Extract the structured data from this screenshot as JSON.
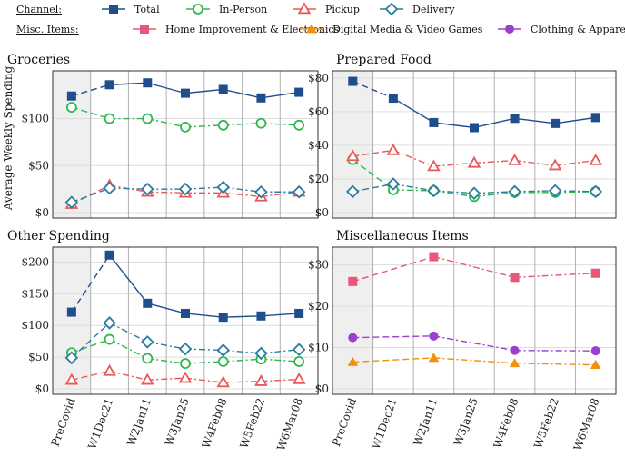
{
  "legend": {
    "channel_heading": "Channel:",
    "misc_heading": "Misc. Items:",
    "channel_items": [
      {
        "label": "Total",
        "color": "#1f4e8c",
        "shape": "square",
        "dash": "solid"
      },
      {
        "label": "In-Person",
        "color": "#2db84d",
        "shape": "circle",
        "dash": "dashdot"
      },
      {
        "label": "Pickup",
        "color": "#e85a5a",
        "shape": "triangle",
        "dash": "dashdot"
      },
      {
        "label": "Delivery",
        "color": "#2a7d9e",
        "shape": "diamond",
        "dash": "dashdot"
      }
    ],
    "misc_items": [
      {
        "label": "Home Improvement & Electronics",
        "color": "#e8577a",
        "shape": "square",
        "dash": "dashdot"
      },
      {
        "label": "Digital Media & Video Games",
        "color": "#f0900c",
        "shape": "triangle-filled",
        "dash": "dashdot"
      },
      {
        "label": "Clothing & Apparel",
        "color": "#9b3fd1",
        "shape": "circle-filled",
        "dash": "dashdot"
      }
    ]
  },
  "ylabel": "Average Weekly Spending",
  "chart_data": [
    {
      "type": "line",
      "title": "Groceries",
      "categories": [
        "PreCovid",
        "W1Dec21",
        "W2Jan11",
        "W3Jan25",
        "W4Feb08",
        "W5Feb22",
        "W6Mar08"
      ],
      "ylim": [
        0,
        145
      ],
      "yticks": [
        0,
        50,
        100
      ],
      "ytick_labels": [
        "$0",
        "$50",
        "$100"
      ],
      "series": [
        {
          "name": "Total",
          "values": [
            124,
            136,
            138,
            127,
            131,
            122,
            128
          ]
        },
        {
          "name": "In-Person",
          "values": [
            112,
            100,
            100,
            91,
            93,
            95,
            93
          ]
        },
        {
          "name": "Pickup",
          "values": [
            9,
            29,
            22,
            21,
            21,
            17,
            22
          ]
        },
        {
          "name": "Delivery",
          "values": [
            11,
            26,
            25,
            25,
            27,
            22,
            22
          ]
        }
      ]
    },
    {
      "type": "line",
      "title": "Prepared Food",
      "categories": [
        "PreCovid",
        "W1Dec21",
        "W2Jan11",
        "W3Jan25",
        "W4Feb08",
        "W5Feb22",
        "W6Mar08"
      ],
      "ylim": [
        0,
        81
      ],
      "yticks": [
        0,
        20,
        40,
        60,
        80
      ],
      "ytick_labels": [
        "$0",
        "$20",
        "$40",
        "$60",
        "$80"
      ],
      "series": [
        {
          "name": "Total",
          "values": [
            78,
            68,
            53.5,
            50.5,
            56,
            53,
            56.5
          ]
        },
        {
          "name": "In-Person",
          "values": [
            31.5,
            13.5,
            13,
            9.5,
            12,
            12,
            12.5
          ]
        },
        {
          "name": "Pickup",
          "values": [
            33.5,
            37,
            27.5,
            29.5,
            31,
            28,
            31
          ]
        },
        {
          "name": "Delivery",
          "values": [
            12.5,
            17,
            13,
            11.5,
            12.5,
            13,
            12.5
          ]
        }
      ]
    },
    {
      "type": "line",
      "title": "Other Spending",
      "categories": [
        "PreCovid",
        "W1Dec21",
        "W2Jan11",
        "W3Jan25",
        "W4Feb08",
        "W5Feb22",
        "W6Mar08"
      ],
      "ylim": [
        0,
        215
      ],
      "yticks": [
        0,
        50,
        100,
        150,
        200
      ],
      "ytick_labels": [
        "$0",
        "$50",
        "$100",
        "$150",
        "$200"
      ],
      "series": [
        {
          "name": "Total",
          "values": [
            121,
            211,
            135,
            119,
            113,
            115,
            119
          ]
        },
        {
          "name": "In-Person",
          "values": [
            57,
            78,
            48,
            40,
            43,
            47,
            43
          ]
        },
        {
          "name": "Pickup",
          "values": [
            14,
            28,
            14,
            17,
            10,
            12,
            15
          ]
        },
        {
          "name": "Delivery",
          "values": [
            49,
            104,
            74,
            63,
            61,
            56,
            62
          ]
        }
      ]
    },
    {
      "type": "line",
      "title": "Miscellaneous Items",
      "categories": [
        "PreCovid",
        "W1Dec21",
        "W2Jan11",
        "W3Jan25",
        "W4Feb08",
        "W5Feb22",
        "W6Mar08"
      ],
      "ylim": [
        0,
        33
      ],
      "yticks": [
        0,
        10,
        20,
        30
      ],
      "ytick_labels": [
        "$0",
        "$10",
        "$20",
        "$30"
      ],
      "series": [
        {
          "name": "Home Improvement & Electronics",
          "values": [
            26,
            null,
            32,
            null,
            27,
            null,
            28
          ]
        },
        {
          "name": "Digital Media & Video Games",
          "values": [
            6.5,
            null,
            7.5,
            null,
            6.2,
            null,
            5.8
          ]
        },
        {
          "name": "Clothing & Apparel",
          "values": [
            12.4,
            null,
            12.8,
            null,
            9.3,
            null,
            9.2
          ]
        }
      ]
    }
  ]
}
